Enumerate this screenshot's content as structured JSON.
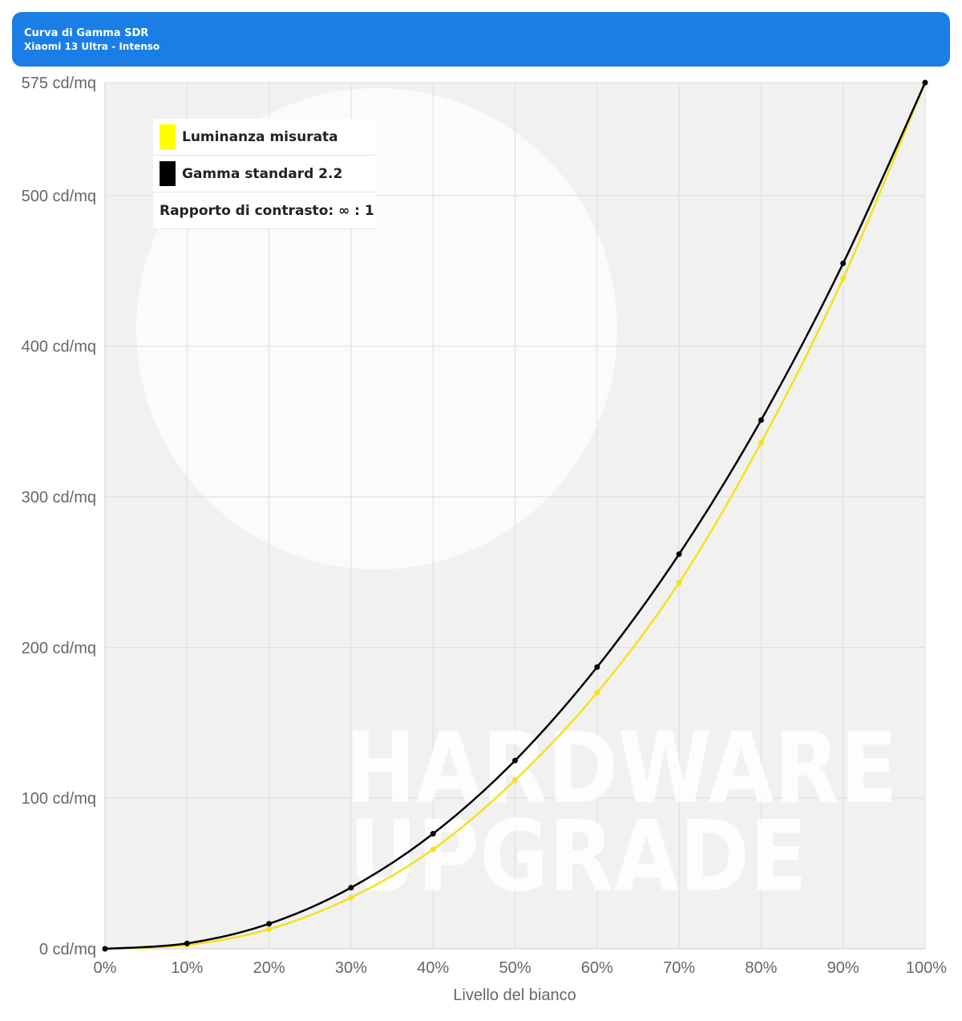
{
  "header": {
    "title": "Curva di Gamma SDR",
    "subtitle": "Xiaomi 13 Ultra - Intenso",
    "background_color": "#1b7ee6"
  },
  "legend": {
    "measured_label": "Luminanza misurata",
    "standard_label": "Gamma standard 2.2",
    "contrast_text": "Rapporto di contrasto: ∞ : 1"
  },
  "watermark": {
    "line1": "HARDWARE",
    "line2": "UPGRADE"
  },
  "chart_data": {
    "type": "line",
    "x": [
      0,
      10,
      20,
      30,
      40,
      50,
      60,
      70,
      80,
      90,
      100
    ],
    "x_tick_labels": [
      "0%",
      "10%",
      "20%",
      "30%",
      "40%",
      "50%",
      "60%",
      "70%",
      "80%",
      "90%",
      "100%"
    ],
    "xlabel": "Livello del bianco",
    "ylabel": "",
    "y_ticks": [
      0,
      100,
      200,
      300,
      400,
      500,
      575
    ],
    "y_tick_labels": [
      "0 cd/mq",
      "100 cd/mq",
      "200 cd/mq",
      "300 cd/mq",
      "400 cd/mq",
      "500 cd/mq",
      "575 cd/mq"
    ],
    "xlim": [
      0,
      100
    ],
    "ylim": [
      0,
      575
    ],
    "grid": true,
    "legend_position": "top-left",
    "series": [
      {
        "name": "Luminanza misurata",
        "color": "#f5e11a",
        "marker_color": "#f5e11a",
        "values": [
          0,
          2.5,
          13,
          34,
          66,
          112,
          170,
          243,
          336,
          445,
          575
        ]
      },
      {
        "name": "Gamma standard 2.2",
        "color": "#000000",
        "marker_color": "#000000",
        "values": [
          0,
          3.6,
          16.6,
          40.6,
          76.4,
          125,
          187,
          262,
          351,
          455,
          575
        ]
      }
    ]
  }
}
